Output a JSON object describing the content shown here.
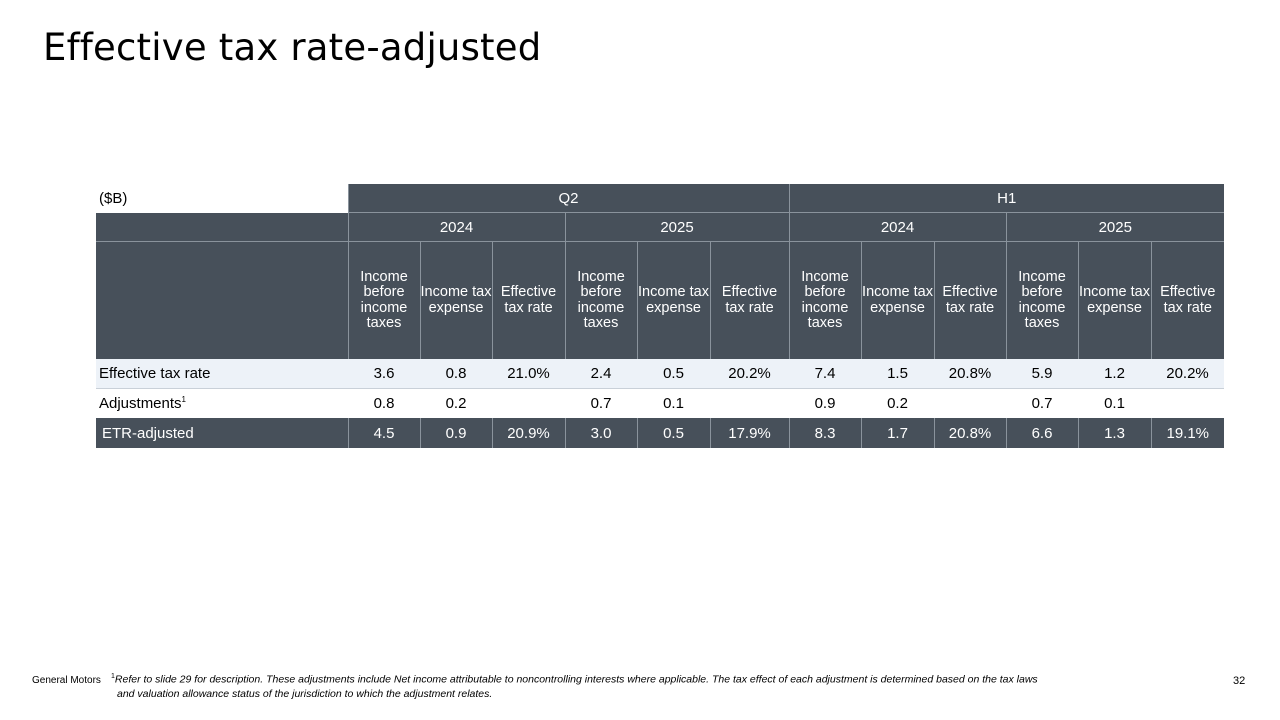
{
  "page": {
    "title": "Effective tax rate-adjusted",
    "company": "General Motors",
    "page_number": "32"
  },
  "table": {
    "unit_label": "($B)",
    "periods": [
      "Q2",
      "H1"
    ],
    "years": [
      "2024",
      "2025",
      "2024",
      "2025"
    ],
    "column_headers": [
      "Income before income taxes",
      "Income tax expense",
      "Effective tax rate",
      "Income before income taxes",
      "Income tax expense",
      "Effective tax rate",
      "Income before income taxes",
      "Income tax expense",
      "Effective tax rate",
      "Income before income taxes",
      "Income tax expense",
      "Effective tax rate"
    ],
    "rows": [
      {
        "label": "Effective tax rate",
        "values": [
          "3.6",
          "0.8",
          "21.0%",
          "2.4",
          "0.5",
          "20.2%",
          "7.4",
          "1.5",
          "20.8%",
          "5.9",
          "1.2",
          "20.2%"
        ]
      },
      {
        "label": "Adjustments",
        "footnote_mark": "1",
        "values": [
          "0.8",
          "0.2",
          "",
          "0.7",
          "0.1",
          "",
          "0.9",
          "0.2",
          "",
          "0.7",
          "0.1",
          ""
        ]
      },
      {
        "label": "ETR-adjusted",
        "values": [
          "4.5",
          "0.9",
          "20.9%",
          "3.0",
          "0.5",
          "17.9%",
          "8.3",
          "1.7",
          "20.8%",
          "6.6",
          "1.3",
          "19.1%"
        ]
      }
    ]
  },
  "footnote": {
    "mark": "1",
    "line1": "Refer to slide 29 for description. These adjustments include Net income attributable to noncontrolling interests where applicable. The tax effect of each adjustment is determined based on the tax laws",
    "line2": "and valuation allowance status of the jurisdiction to which the adjustment relates."
  },
  "colors": {
    "header_bg": "#47505a",
    "row_highlight": "#edf2f8"
  }
}
